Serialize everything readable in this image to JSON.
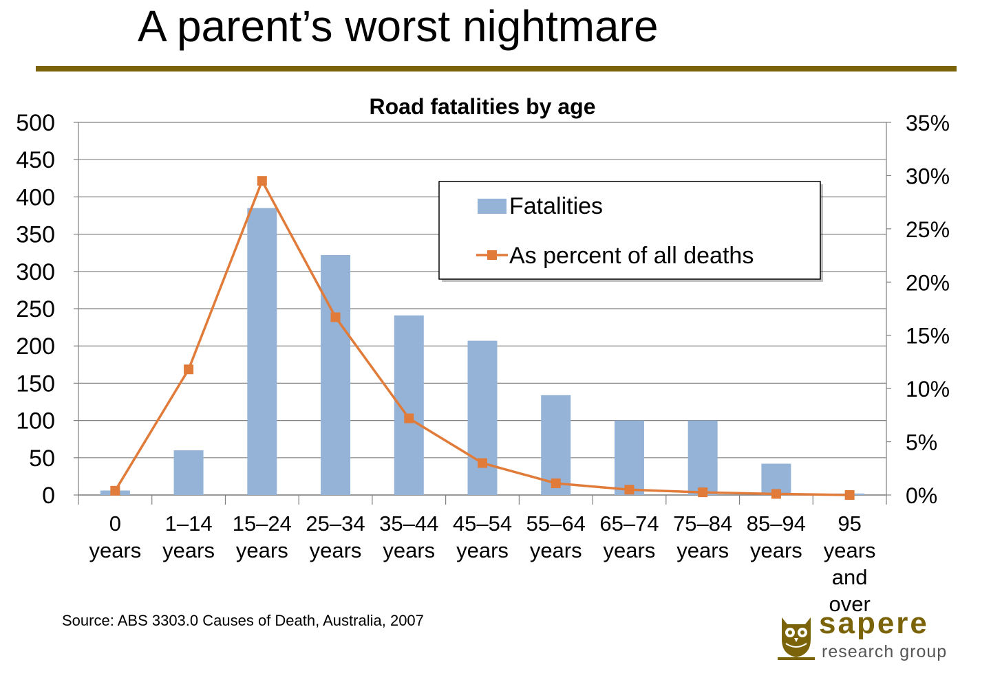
{
  "slide": {
    "title": "A parent’s worst nightmare",
    "source": "Source: ABS 3303.0 Causes of Death, Australia, 2007"
  },
  "logo": {
    "name": "sapere",
    "tagline": "research group",
    "mark": "owl-icon"
  },
  "colors": {
    "bar": "#95b3d7",
    "line": "#e07b39",
    "rule": "#7a6308",
    "grid": "#808080"
  },
  "chart_data": {
    "type": "bar",
    "title": "Road fatalities by age",
    "categories": [
      [
        "0",
        "years"
      ],
      [
        "1–14",
        "years"
      ],
      [
        "15–24",
        "years"
      ],
      [
        "25–34",
        "years"
      ],
      [
        "35–44",
        "years"
      ],
      [
        "45–54",
        "years"
      ],
      [
        "55–64",
        "years"
      ],
      [
        "65–74",
        "years"
      ],
      [
        "75–84",
        "years"
      ],
      [
        "85–94",
        "years"
      ],
      [
        "95",
        "years",
        "and",
        "over"
      ]
    ],
    "series": [
      {
        "name": "Fatalities",
        "type": "bar",
        "axis": "left",
        "values": [
          6,
          60,
          385,
          322,
          241,
          207,
          134,
          100,
          100,
          42,
          2
        ]
      },
      {
        "name": "As percent of all deaths",
        "type": "line",
        "axis": "right",
        "values": [
          0.4,
          11.8,
          29.5,
          16.7,
          7.2,
          3.0,
          1.1,
          0.5,
          0.25,
          0.1,
          0.0
        ]
      }
    ],
    "y_left": {
      "min": 0,
      "max": 500,
      "ticks": [
        "0",
        "50",
        "100",
        "150",
        "200",
        "250",
        "300",
        "350",
        "400",
        "450",
        "500"
      ]
    },
    "y_right": {
      "min": 0,
      "max": 35,
      "ticks": [
        "0%",
        "5%",
        "10%",
        "15%",
        "20%",
        "25%",
        "30%",
        "35%"
      ]
    },
    "grid": true,
    "legend_position": "top-right"
  }
}
